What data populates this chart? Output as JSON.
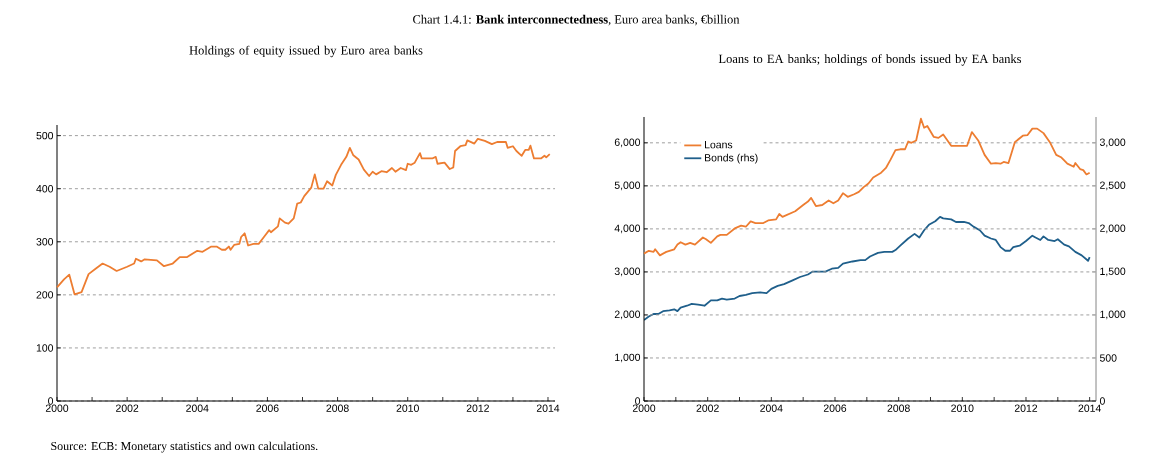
{
  "chart_data": [
    {
      "type": "line",
      "title": "Chart 1.4.1: **Bank interconnectedness**, Euro area banks, €billion",
      "subtitle": "Holdings of equity issued by Euro area banks",
      "annotations": [
        "Source: ECB: Monetary statistics and own calculations."
      ],
      "xlim": [
        2000,
        2014.2
      ],
      "ylim": [
        0,
        520
      ],
      "grid": "y",
      "xticks": [
        2000,
        {
          "value": 2001,
          "label": null
        },
        2002,
        {
          "value": 2003,
          "label": null
        },
        2004,
        {
          "value": 2005,
          "label": null
        },
        2006,
        {
          "value": 2007,
          "label": null
        },
        2008,
        {
          "value": 2009,
          "label": null
        },
        2010,
        {
          "value": 2011,
          "label": null
        },
        2012,
        {
          "value": 2013,
          "label": null
        },
        2014
      ],
      "yticks": [
        0,
        100,
        200,
        300,
        400,
        500
      ],
      "series": [
        {
          "color": "#ed7d31",
          "x": [
            2000.0,
            2000.2,
            2000.35,
            2000.5,
            2000.7,
            2000.9,
            2001.1,
            2001.3,
            2001.5,
            2001.7,
            2002.0,
            2002.2,
            2002.25,
            2002.4,
            2002.5,
            2002.85,
            2003.05,
            2003.3,
            2003.5,
            2003.7,
            2004.0,
            2004.15,
            2004.4,
            2004.55,
            2004.7,
            2004.8,
            2004.9,
            2004.95,
            2005.05,
            2005.2,
            2005.25,
            2005.35,
            2005.45,
            2005.6,
            2005.75,
            2005.9,
            2006.05,
            2006.1,
            2006.3,
            2006.35,
            2006.5,
            2006.6,
            2006.75,
            2006.85,
            2006.95,
            2007.05,
            2007.25,
            2007.35,
            2007.45,
            2007.6,
            2007.7,
            2007.85,
            2007.95,
            2008.1,
            2008.25,
            2008.35,
            2008.45,
            2008.6,
            2008.75,
            2008.9,
            2009.0,
            2009.1,
            2009.25,
            2009.4,
            2009.55,
            2009.65,
            2009.8,
            2009.95,
            2010.0,
            2010.1,
            2010.2,
            2010.35,
            2010.4,
            2010.7,
            2010.8,
            2010.85,
            2011.05,
            2011.2,
            2011.3,
            2011.35,
            2011.5,
            2011.65,
            2011.7,
            2011.9,
            2012.0,
            2012.2,
            2012.4,
            2012.55,
            2012.8,
            2012.85,
            2013.0,
            2013.1,
            2013.25,
            2013.35,
            2013.45,
            2013.5,
            2013.6,
            2013.8,
            2013.9,
            2013.95,
            2014.05
          ],
          "values": [
            214,
            229,
            238,
            201,
            205,
            239,
            249,
            259,
            253,
            245,
            253,
            259,
            268,
            263,
            267,
            265,
            254,
            259,
            271,
            271,
            283,
            281,
            291,
            291,
            285,
            285,
            291,
            285,
            294,
            296,
            309,
            316,
            293,
            296,
            296,
            309,
            322,
            318,
            329,
            344,
            336,
            334,
            344,
            372,
            374,
            386,
            402,
            427,
            400,
            400,
            414,
            406,
            426,
            445,
            460,
            477,
            463,
            455,
            436,
            424,
            432,
            427,
            433,
            431,
            439,
            432,
            439,
            435,
            447,
            445,
            449,
            467,
            457,
            457,
            460,
            447,
            449,
            437,
            440,
            471,
            480,
            482,
            491,
            485,
            494,
            490,
            484,
            488,
            488,
            477,
            480,
            471,
            462,
            473,
            473,
            481,
            457,
            457,
            462,
            459,
            465
          ]
        }
      ]
    },
    {
      "type": "line",
      "title": "Loans to EA banks; holdings of bonds issued by EA banks",
      "xlim": [
        2000,
        2014.2
      ],
      "ylim": [
        0,
        6600
      ],
      "y2lim": [
        0,
        3300
      ],
      "grid": "y",
      "legend": "top left",
      "xticks": [
        2000,
        {
          "value": 2001,
          "label": null
        },
        2002,
        {
          "value": 2003,
          "label": null
        },
        2004,
        {
          "value": 2005,
          "label": null
        },
        2006,
        {
          "value": 2007,
          "label": null
        },
        2008,
        {
          "value": 2009,
          "label": null
        },
        2010,
        {
          "value": 2011,
          "label": null
        },
        2012,
        {
          "value": 2013,
          "label": null
        },
        2014
      ],
      "yticks": [
        0,
        {
          "value": 1000,
          "label": "1,000"
        },
        {
          "value": 2000,
          "label": "2,000"
        },
        {
          "value": 3000,
          "label": "3,000"
        },
        {
          "value": 4000,
          "label": "4,000"
        },
        {
          "value": 5000,
          "label": "5,000"
        },
        {
          "value": 6000,
          "label": "6,000"
        }
      ],
      "y2ticks": [
        0,
        500,
        {
          "value": 1000,
          "label": "1,000"
        },
        {
          "value": 1500,
          "label": "1,500"
        },
        {
          "value": 2000,
          "label": "2,000"
        },
        {
          "value": 2500,
          "label": "2,500"
        },
        {
          "value": 3000,
          "label": "3,000"
        }
      ],
      "series": [
        {
          "name": "Loans",
          "color": "#ed7d31",
          "x": [
            2000.0,
            2000.15,
            2000.3,
            2000.35,
            2000.5,
            2000.7,
            2000.95,
            2001.05,
            2001.15,
            2001.3,
            2001.45,
            2001.6,
            2001.85,
            2001.95,
            2002.1,
            2002.3,
            2002.4,
            2002.6,
            2002.85,
            2003.05,
            2003.2,
            2003.35,
            2003.5,
            2003.75,
            2003.9,
            2004.15,
            2004.25,
            2004.35,
            2004.55,
            2004.75,
            2005.0,
            2005.15,
            2005.25,
            2005.4,
            2005.6,
            2005.8,
            2005.95,
            2006.1,
            2006.25,
            2006.4,
            2006.6,
            2006.75,
            2006.9,
            2007.05,
            2007.2,
            2007.45,
            2007.6,
            2007.75,
            2007.9,
            2008.05,
            2008.2,
            2008.3,
            2008.4,
            2008.55,
            2008.7,
            2008.8,
            2008.9,
            2009.1,
            2009.25,
            2009.4,
            2009.65,
            2009.9,
            2010.15,
            2010.3,
            2010.5,
            2010.7,
            2010.9,
            2011.05,
            2011.2,
            2011.3,
            2011.45,
            2011.65,
            2011.9,
            2012.05,
            2012.2,
            2012.35,
            2012.55,
            2012.75,
            2012.95,
            2013.1,
            2013.3,
            2013.5,
            2013.55,
            2013.7,
            2013.8,
            2013.9,
            2014.0
          ],
          "values": [
            3425,
            3490,
            3465,
            3525,
            3385,
            3465,
            3525,
            3635,
            3690,
            3635,
            3675,
            3635,
            3800,
            3760,
            3675,
            3825,
            3860,
            3860,
            4010,
            4075,
            4050,
            4175,
            4135,
            4135,
            4195,
            4220,
            4345,
            4280,
            4345,
            4410,
            4555,
            4635,
            4720,
            4530,
            4555,
            4660,
            4595,
            4660,
            4830,
            4745,
            4805,
            4860,
            4970,
            5055,
            5195,
            5305,
            5415,
            5615,
            5830,
            5850,
            5850,
            6030,
            6000,
            6055,
            6560,
            6350,
            6390,
            6140,
            6115,
            6195,
            5930,
            5930,
            5930,
            6250,
            6055,
            5720,
            5515,
            5530,
            5515,
            5555,
            5530,
            6015,
            6165,
            6180,
            6330,
            6330,
            6225,
            6015,
            5720,
            5665,
            5515,
            5445,
            5530,
            5390,
            5365,
            5265,
            5305
          ]
        },
        {
          "name": "Bonds (rhs)",
          "color": "#1f5f8b",
          "axis": "y2",
          "x": [
            2000.0,
            2000.15,
            2000.3,
            2000.45,
            2000.6,
            2000.8,
            2000.95,
            2001.05,
            2001.15,
            2001.35,
            2001.5,
            2001.7,
            2001.9,
            2002.1,
            2002.3,
            2002.45,
            2002.6,
            2002.85,
            2003.0,
            2003.2,
            2003.4,
            2003.65,
            2003.85,
            2004.0,
            2004.2,
            2004.4,
            2004.65,
            2004.9,
            2005.15,
            2005.3,
            2005.5,
            2005.7,
            2005.9,
            2006.1,
            2006.25,
            2006.55,
            2006.8,
            2006.95,
            2007.1,
            2007.35,
            2007.55,
            2007.8,
            2007.9,
            2008.05,
            2008.3,
            2008.5,
            2008.65,
            2008.8,
            2008.95,
            2009.15,
            2009.3,
            2009.4,
            2009.65,
            2009.8,
            2010.05,
            2010.2,
            2010.35,
            2010.55,
            2010.7,
            2010.9,
            2011.05,
            2011.2,
            2011.35,
            2011.5,
            2011.6,
            2011.8,
            2012.0,
            2012.2,
            2012.3,
            2012.45,
            2012.55,
            2012.7,
            2012.9,
            2013.0,
            2013.2,
            2013.35,
            2013.55,
            2013.75,
            2013.95,
            2014.0
          ],
          "values": [
            940,
            982,
            1011,
            1011,
            1044,
            1053,
            1065,
            1044,
            1086,
            1107,
            1128,
            1119,
            1107,
            1170,
            1170,
            1190,
            1178,
            1190,
            1220,
            1232,
            1253,
            1261,
            1253,
            1303,
            1337,
            1358,
            1399,
            1441,
            1470,
            1504,
            1504,
            1504,
            1537,
            1546,
            1596,
            1621,
            1637,
            1637,
            1679,
            1721,
            1733,
            1733,
            1754,
            1805,
            1888,
            1942,
            1900,
            1984,
            2047,
            2089,
            2139,
            2122,
            2110,
            2080,
            2080,
            2068,
            2026,
            1984,
            1921,
            1888,
            1871,
            1788,
            1746,
            1746,
            1788,
            1805,
            1859,
            1921,
            1900,
            1871,
            1913,
            1871,
            1859,
            1880,
            1817,
            1796,
            1733,
            1692,
            1629,
            1671
          ]
        }
      ]
    }
  ]
}
